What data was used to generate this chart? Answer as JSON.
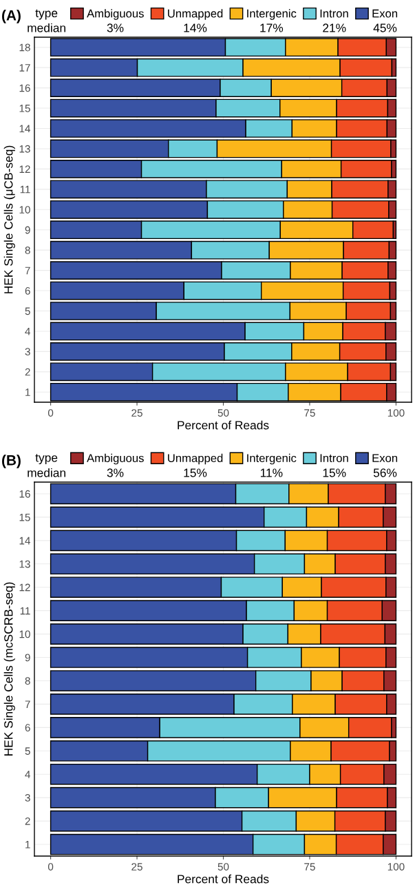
{
  "chart_data": [
    {
      "type": "bar",
      "title": "(A)",
      "orientation": "horizontal",
      "stacked": true,
      "legend": "top",
      "legend_title": "type",
      "grid": true,
      "xlabel": "Percent of Reads",
      "ylabel": "HEK Single Cells (μCB-seq)",
      "categories": [
        "18",
        "17",
        "16",
        "15",
        "14",
        "13",
        "12",
        "11",
        "10",
        "9",
        "8",
        "7",
        "6",
        "5",
        "4",
        "3",
        "2",
        "1"
      ],
      "xlim": [
        -4.7,
        104.5
      ],
      "xticks": [
        0,
        25,
        50,
        75,
        100
      ],
      "annotations": [
        "median",
        "3%",
        "14%",
        "17%",
        "21%",
        "45%"
      ],
      "series": [
        {
          "name": "Exon",
          "color": "#3953a4",
          "values": [
            50.6,
            25.1,
            49.1,
            47.9,
            56.5,
            34.1,
            26.3,
            45.1,
            45.4,
            26.3,
            40.8,
            49.5,
            38.6,
            30.6,
            56.3,
            50.3,
            29.5,
            54.0
          ]
        },
        {
          "name": "Intron",
          "color": "#6bcddb",
          "values": [
            17.4,
            30.6,
            14.8,
            18.5,
            13.4,
            14.1,
            40.6,
            23.4,
            22.0,
            40.2,
            22.5,
            19.9,
            22.4,
            38.7,
            17.0,
            19.5,
            38.5,
            14.8
          ]
        },
        {
          "name": "Intergenic",
          "color": "#fbb61a",
          "values": [
            15.2,
            28.1,
            20.4,
            16.4,
            12.9,
            33.1,
            17.2,
            12.9,
            14.1,
            21.0,
            21.5,
            15.0,
            23.7,
            16.3,
            11.3,
            13.9,
            18.0,
            15.2
          ]
        },
        {
          "name": "Unmapped",
          "color": "#f04d23",
          "values": [
            14.0,
            15.0,
            13.1,
            14.8,
            14.6,
            17.2,
            14.6,
            16.3,
            16.4,
            11.7,
            13.2,
            13.3,
            13.5,
            12.8,
            12.3,
            13.4,
            12.4,
            13.3
          ]
        },
        {
          "name": "Ambiguous",
          "color": "#9e2a2b",
          "values": [
            2.8,
            1.2,
            2.6,
            2.4,
            2.6,
            1.5,
            1.3,
            2.3,
            2.1,
            0.8,
            2.0,
            2.3,
            1.8,
            1.6,
            3.1,
            2.9,
            1.6,
            2.7
          ]
        }
      ]
    },
    {
      "type": "bar",
      "title": "(B)",
      "orientation": "horizontal",
      "stacked": true,
      "legend": "top",
      "legend_title": "type",
      "grid": true,
      "xlabel": "Percent of Reads",
      "ylabel": "HEK Single Cells (mcSCRB-seq)",
      "categories": [
        "16",
        "15",
        "14",
        "13",
        "12",
        "11",
        "10",
        "9",
        "8",
        "7",
        "6",
        "5",
        "4",
        "3",
        "2",
        "1"
      ],
      "xlim": [
        -4.7,
        104.5
      ],
      "xticks": [
        0,
        25,
        50,
        75,
        100
      ],
      "annotations": [
        "median",
        "3%",
        "15%",
        "11%",
        "15%",
        "56%"
      ],
      "series": [
        {
          "name": "Exon",
          "color": "#3953a4",
          "values": [
            53.6,
            61.8,
            53.8,
            59.0,
            49.4,
            56.7,
            55.7,
            57.0,
            59.4,
            53.1,
            31.6,
            28.1,
            59.8,
            47.7,
            55.4,
            58.6
          ]
        },
        {
          "name": "Intron",
          "color": "#6bcddb",
          "values": [
            15.4,
            12.3,
            14.1,
            14.5,
            17.7,
            13.8,
            13.0,
            15.6,
            16.0,
            16.9,
            40.6,
            41.3,
            15.2,
            15.4,
            15.7,
            14.9
          ]
        },
        {
          "name": "Intergenic",
          "color": "#fbb61a",
          "values": [
            11.4,
            9.3,
            12.2,
            8.9,
            11.3,
            9.6,
            9.5,
            11.0,
            9.0,
            12.4,
            14.1,
            11.8,
            8.9,
            19.7,
            11.2,
            9.2
          ]
        },
        {
          "name": "Unmapped",
          "color": "#f04d23",
          "values": [
            16.5,
            12.9,
            17.2,
            14.5,
            18.7,
            15.9,
            18.6,
            13.5,
            12.1,
            14.9,
            12.4,
            16.9,
            12.6,
            14.7,
            14.6,
            13.6
          ]
        },
        {
          "name": "Ambiguous",
          "color": "#9e2a2b",
          "values": [
            3.1,
            3.7,
            2.7,
            3.1,
            2.9,
            4.0,
            3.2,
            2.9,
            3.5,
            2.7,
            1.3,
            1.9,
            3.5,
            2.5,
            3.1,
            3.7
          ]
        }
      ]
    }
  ]
}
